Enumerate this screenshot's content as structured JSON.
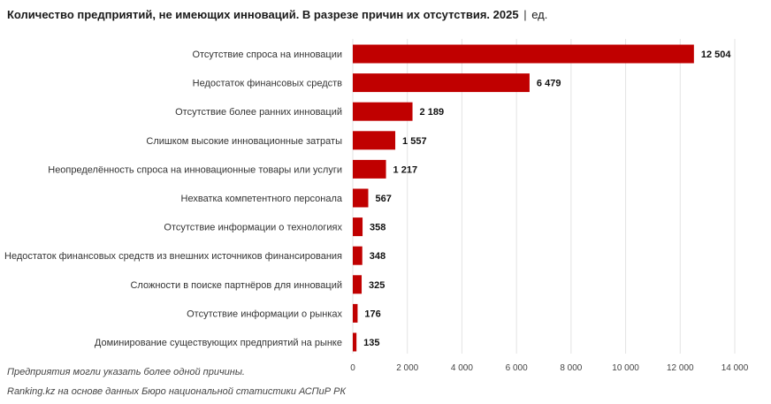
{
  "title": "Количество предприятий, не имеющих инноваций. В разрезе причин их отсутствия. 2025",
  "title_separator": "|",
  "title_unit": "ед.",
  "footnote": "Предприятия могли указать более одной причины.",
  "source": "Ranking.kz на основе данных Бюро национальной статистики АСПиР РК",
  "chart_data": {
    "type": "bar",
    "orientation": "horizontal",
    "categories": [
      "Отсутствие спроса на инновации",
      "Недостаток финансовых средств",
      "Отсутствие более ранних инноваций",
      "Слишком высокие инновационные затраты",
      "Неопределённость спроса на инновационные товары или услуги",
      "Нехватка компетентного персонала",
      "Отсутствие информации о технологиях",
      "Недостаток финансовых средств из внешних источников финансирования",
      "Сложности в поиске партнёров для инноваций",
      "Отсутствие информации о рынках",
      "Доминирование существующих предприятий на рынке"
    ],
    "values": [
      12504,
      6479,
      2189,
      1557,
      1217,
      567,
      358,
      348,
      325,
      176,
      135
    ],
    "value_labels": [
      "12 504",
      "6 479",
      "2 189",
      "1 557",
      "1 217",
      "567",
      "358",
      "348",
      "325",
      "176",
      "135"
    ],
    "xlim": [
      0,
      14000
    ],
    "xticks": [
      0,
      2000,
      4000,
      6000,
      8000,
      10000,
      12000,
      14000
    ],
    "xtick_labels": [
      "0",
      "2 000",
      "4 000",
      "6 000",
      "8 000",
      "10 000",
      "12 000",
      "14 000"
    ],
    "grid": true,
    "bar_color": "#c00000",
    "grid_color": "#e3e3e3"
  }
}
